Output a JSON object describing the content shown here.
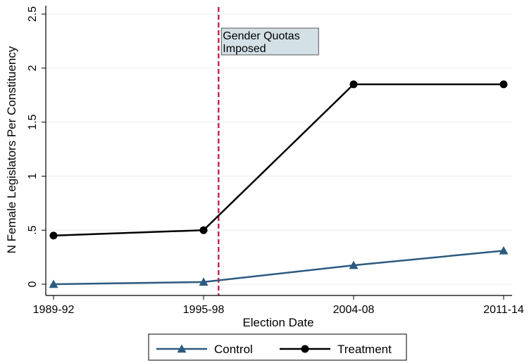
{
  "chart_data": {
    "type": "line",
    "categories": [
      "1989-92",
      "1995-98",
      "2004-08",
      "2011-14"
    ],
    "x_positions": [
      0,
      1,
      2,
      3
    ],
    "series": [
      {
        "name": "Control",
        "values": [
          0.0,
          0.02,
          0.175,
          0.31
        ],
        "color": "#2d5a80",
        "marker": "triangle"
      },
      {
        "name": "Treatment",
        "values": [
          0.45,
          0.5,
          1.85,
          1.85
        ],
        "color": "#000000",
        "marker": "circle"
      }
    ],
    "xlabel": "Election Date",
    "ylabel": "N Female Legislators Per Constituency",
    "ylim": [
      0,
      2.5
    ],
    "yticks": [
      0,
      0.5,
      1,
      1.5,
      2,
      2.5
    ],
    "ytick_labels": [
      "0",
      ".5",
      "1",
      "1.5",
      "2",
      "2.5"
    ],
    "grid": true,
    "legend_position": "bottom",
    "annotation": {
      "x": 1.1,
      "text_lines": [
        "Gender Quotas",
        "Imposed"
      ],
      "line_color": "#c8274f",
      "box_color": "#d3e0e6"
    }
  }
}
